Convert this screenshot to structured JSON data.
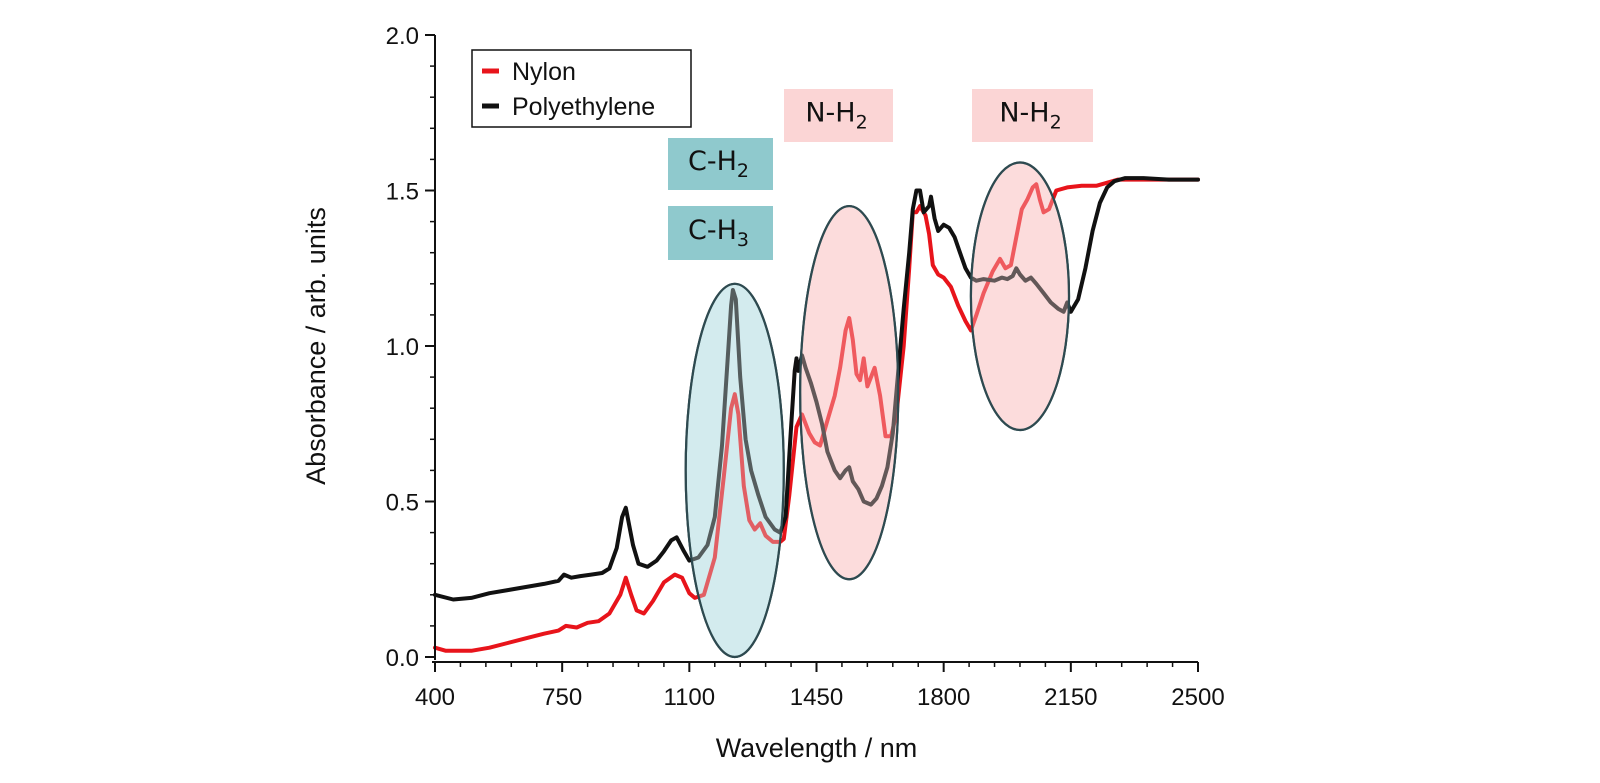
{
  "chart_data": {
    "type": "line",
    "title": "",
    "xlabel": "Wavelength / nm",
    "ylabel": "Absorbance / arb. units",
    "xlim": [
      400,
      2500
    ],
    "ylim": [
      0.0,
      2.0
    ],
    "xticks": [
      400,
      750,
      1100,
      1450,
      1800,
      2150,
      2500
    ],
    "xtick_labels": [
      "400",
      "750",
      "1100",
      "1450",
      "1800",
      "2150",
      "2500"
    ],
    "yticks": [
      0.0,
      0.5,
      1.0,
      1.5,
      2.0
    ],
    "ytick_labels": [
      "0.0",
      "0.5",
      "1.0",
      "1.5",
      "2.0"
    ],
    "grid": false,
    "legend_position": "top-left",
    "series": [
      {
        "name": "Nylon",
        "color": "#e8141b",
        "points": [
          [
            400,
            0.03
          ],
          [
            430,
            0.02
          ],
          [
            500,
            0.02
          ],
          [
            550,
            0.03
          ],
          [
            600,
            0.045
          ],
          [
            650,
            0.06
          ],
          [
            700,
            0.075
          ],
          [
            740,
            0.085
          ],
          [
            760,
            0.1
          ],
          [
            790,
            0.095
          ],
          [
            820,
            0.11
          ],
          [
            850,
            0.115
          ],
          [
            880,
            0.14
          ],
          [
            910,
            0.2
          ],
          [
            925,
            0.255
          ],
          [
            940,
            0.2
          ],
          [
            955,
            0.15
          ],
          [
            975,
            0.14
          ],
          [
            1000,
            0.18
          ],
          [
            1030,
            0.24
          ],
          [
            1060,
            0.265
          ],
          [
            1080,
            0.255
          ],
          [
            1100,
            0.205
          ],
          [
            1115,
            0.19
          ],
          [
            1140,
            0.2
          ],
          [
            1170,
            0.32
          ],
          [
            1195,
            0.58
          ],
          [
            1215,
            0.8
          ],
          [
            1225,
            0.845
          ],
          [
            1235,
            0.78
          ],
          [
            1250,
            0.55
          ],
          [
            1265,
            0.44
          ],
          [
            1280,
            0.41
          ],
          [
            1295,
            0.43
          ],
          [
            1310,
            0.39
          ],
          [
            1330,
            0.37
          ],
          [
            1350,
            0.37
          ],
          [
            1360,
            0.38
          ],
          [
            1375,
            0.52
          ],
          [
            1395,
            0.74
          ],
          [
            1410,
            0.78
          ],
          [
            1430,
            0.72
          ],
          [
            1445,
            0.69
          ],
          [
            1460,
            0.68
          ],
          [
            1480,
            0.76
          ],
          [
            1500,
            0.84
          ],
          [
            1515,
            0.93
          ],
          [
            1530,
            1.05
          ],
          [
            1540,
            1.09
          ],
          [
            1550,
            1.02
          ],
          [
            1560,
            0.91
          ],
          [
            1570,
            0.89
          ],
          [
            1580,
            0.96
          ],
          [
            1590,
            0.87
          ],
          [
            1600,
            0.9
          ],
          [
            1610,
            0.93
          ],
          [
            1625,
            0.84
          ],
          [
            1640,
            0.71
          ],
          [
            1655,
            0.71
          ],
          [
            1670,
            0.78
          ],
          [
            1690,
            1.0
          ],
          [
            1705,
            1.25
          ],
          [
            1715,
            1.43
          ],
          [
            1725,
            1.43
          ],
          [
            1735,
            1.45
          ],
          [
            1750,
            1.42
          ],
          [
            1760,
            1.36
          ],
          [
            1770,
            1.26
          ],
          [
            1785,
            1.23
          ],
          [
            1800,
            1.22
          ],
          [
            1820,
            1.19
          ],
          [
            1840,
            1.13
          ],
          [
            1860,
            1.08
          ],
          [
            1875,
            1.05
          ],
          [
            1890,
            1.1
          ],
          [
            1910,
            1.17
          ],
          [
            1935,
            1.24
          ],
          [
            1955,
            1.28
          ],
          [
            1970,
            1.25
          ],
          [
            1985,
            1.26
          ],
          [
            2000,
            1.35
          ],
          [
            2015,
            1.44
          ],
          [
            2030,
            1.47
          ],
          [
            2045,
            1.51
          ],
          [
            2055,
            1.52
          ],
          [
            2065,
            1.47
          ],
          [
            2075,
            1.43
          ],
          [
            2090,
            1.44
          ],
          [
            2110,
            1.5
          ],
          [
            2140,
            1.51
          ],
          [
            2180,
            1.515
          ],
          [
            2220,
            1.515
          ],
          [
            2250,
            1.525
          ],
          [
            2280,
            1.535
          ],
          [
            2350,
            1.535
          ],
          [
            2420,
            1.535
          ],
          [
            2500,
            1.535
          ]
        ]
      },
      {
        "name": "Polyethylene",
        "color": "#111111",
        "points": [
          [
            400,
            0.2
          ],
          [
            450,
            0.185
          ],
          [
            500,
            0.19
          ],
          [
            550,
            0.205
          ],
          [
            600,
            0.215
          ],
          [
            650,
            0.225
          ],
          [
            700,
            0.235
          ],
          [
            740,
            0.245
          ],
          [
            755,
            0.265
          ],
          [
            775,
            0.255
          ],
          [
            800,
            0.26
          ],
          [
            830,
            0.265
          ],
          [
            860,
            0.27
          ],
          [
            880,
            0.285
          ],
          [
            900,
            0.35
          ],
          [
            915,
            0.45
          ],
          [
            925,
            0.48
          ],
          [
            935,
            0.42
          ],
          [
            945,
            0.36
          ],
          [
            960,
            0.3
          ],
          [
            985,
            0.29
          ],
          [
            1010,
            0.31
          ],
          [
            1030,
            0.34
          ],
          [
            1050,
            0.375
          ],
          [
            1065,
            0.385
          ],
          [
            1085,
            0.34
          ],
          [
            1100,
            0.31
          ],
          [
            1125,
            0.32
          ],
          [
            1150,
            0.36
          ],
          [
            1170,
            0.45
          ],
          [
            1190,
            0.68
          ],
          [
            1205,
            0.95
          ],
          [
            1215,
            1.13
          ],
          [
            1220,
            1.18
          ],
          [
            1228,
            1.15
          ],
          [
            1240,
            0.9
          ],
          [
            1255,
            0.7
          ],
          [
            1270,
            0.6
          ],
          [
            1290,
            0.52
          ],
          [
            1310,
            0.45
          ],
          [
            1335,
            0.41
          ],
          [
            1350,
            0.4
          ],
          [
            1365,
            0.45
          ],
          [
            1378,
            0.7
          ],
          [
            1390,
            0.92
          ],
          [
            1395,
            0.96
          ],
          [
            1400,
            0.92
          ],
          [
            1410,
            0.97
          ],
          [
            1420,
            0.93
          ],
          [
            1435,
            0.88
          ],
          [
            1450,
            0.82
          ],
          [
            1465,
            0.75
          ],
          [
            1480,
            0.66
          ],
          [
            1500,
            0.6
          ],
          [
            1515,
            0.575
          ],
          [
            1530,
            0.6
          ],
          [
            1540,
            0.61
          ],
          [
            1550,
            0.565
          ],
          [
            1565,
            0.54
          ],
          [
            1580,
            0.5
          ],
          [
            1600,
            0.49
          ],
          [
            1615,
            0.51
          ],
          [
            1630,
            0.55
          ],
          [
            1645,
            0.61
          ],
          [
            1660,
            0.72
          ],
          [
            1675,
            0.92
          ],
          [
            1690,
            1.12
          ],
          [
            1705,
            1.3
          ],
          [
            1715,
            1.44
          ],
          [
            1725,
            1.5
          ],
          [
            1735,
            1.5
          ],
          [
            1745,
            1.43
          ],
          [
            1760,
            1.45
          ],
          [
            1765,
            1.48
          ],
          [
            1775,
            1.41
          ],
          [
            1785,
            1.37
          ],
          [
            1800,
            1.39
          ],
          [
            1815,
            1.38
          ],
          [
            1830,
            1.35
          ],
          [
            1845,
            1.3
          ],
          [
            1860,
            1.25
          ],
          [
            1875,
            1.22
          ],
          [
            1890,
            1.21
          ],
          [
            1910,
            1.215
          ],
          [
            1940,
            1.21
          ],
          [
            1960,
            1.22
          ],
          [
            1975,
            1.215
          ],
          [
            1990,
            1.225
          ],
          [
            2000,
            1.25
          ],
          [
            2010,
            1.23
          ],
          [
            2025,
            1.21
          ],
          [
            2040,
            1.22
          ],
          [
            2055,
            1.2
          ],
          [
            2075,
            1.17
          ],
          [
            2095,
            1.14
          ],
          [
            2115,
            1.12
          ],
          [
            2130,
            1.11
          ],
          [
            2140,
            1.14
          ],
          [
            2150,
            1.11
          ],
          [
            2170,
            1.15
          ],
          [
            2190,
            1.25
          ],
          [
            2210,
            1.37
          ],
          [
            2230,
            1.46
          ],
          [
            2250,
            1.51
          ],
          [
            2270,
            1.53
          ],
          [
            2300,
            1.54
          ],
          [
            2350,
            1.54
          ],
          [
            2420,
            1.535
          ],
          [
            2500,
            1.535
          ]
        ]
      }
    ],
    "annotations": [
      {
        "kind": "highlight-ellipse",
        "label": "C-H",
        "fill": "#d3ecee",
        "stroke": "#2e4a50",
        "center_x": 1225,
        "center_y": 0.6,
        "semi_width_nm": 135,
        "semi_height": 0.6
      },
      {
        "kind": "highlight-ellipse",
        "label": "N-H",
        "fill": "#fcdcdc",
        "stroke": "#2e4a50",
        "center_x": 1540,
        "center_y": 0.85,
        "semi_width_nm": 135,
        "semi_height": 0.6
      },
      {
        "kind": "highlight-ellipse",
        "label": "N-H",
        "fill": "#fcdcdc",
        "stroke": "#2e4a50",
        "center_x": 2010,
        "center_y": 1.16,
        "semi_width_nm": 135,
        "semi_height": 0.43
      }
    ],
    "label_boxes": [
      {
        "text": "C-H",
        "sub": "2",
        "fill": "#8fc9cd"
      },
      {
        "text": "C-H",
        "sub": "3",
        "fill": "#8fc9cd"
      },
      {
        "text": "N-H",
        "sub": "2",
        "fill": "#fbd5d5"
      },
      {
        "text": "N-H",
        "sub": "2",
        "fill": "#fbd5d5"
      }
    ]
  }
}
